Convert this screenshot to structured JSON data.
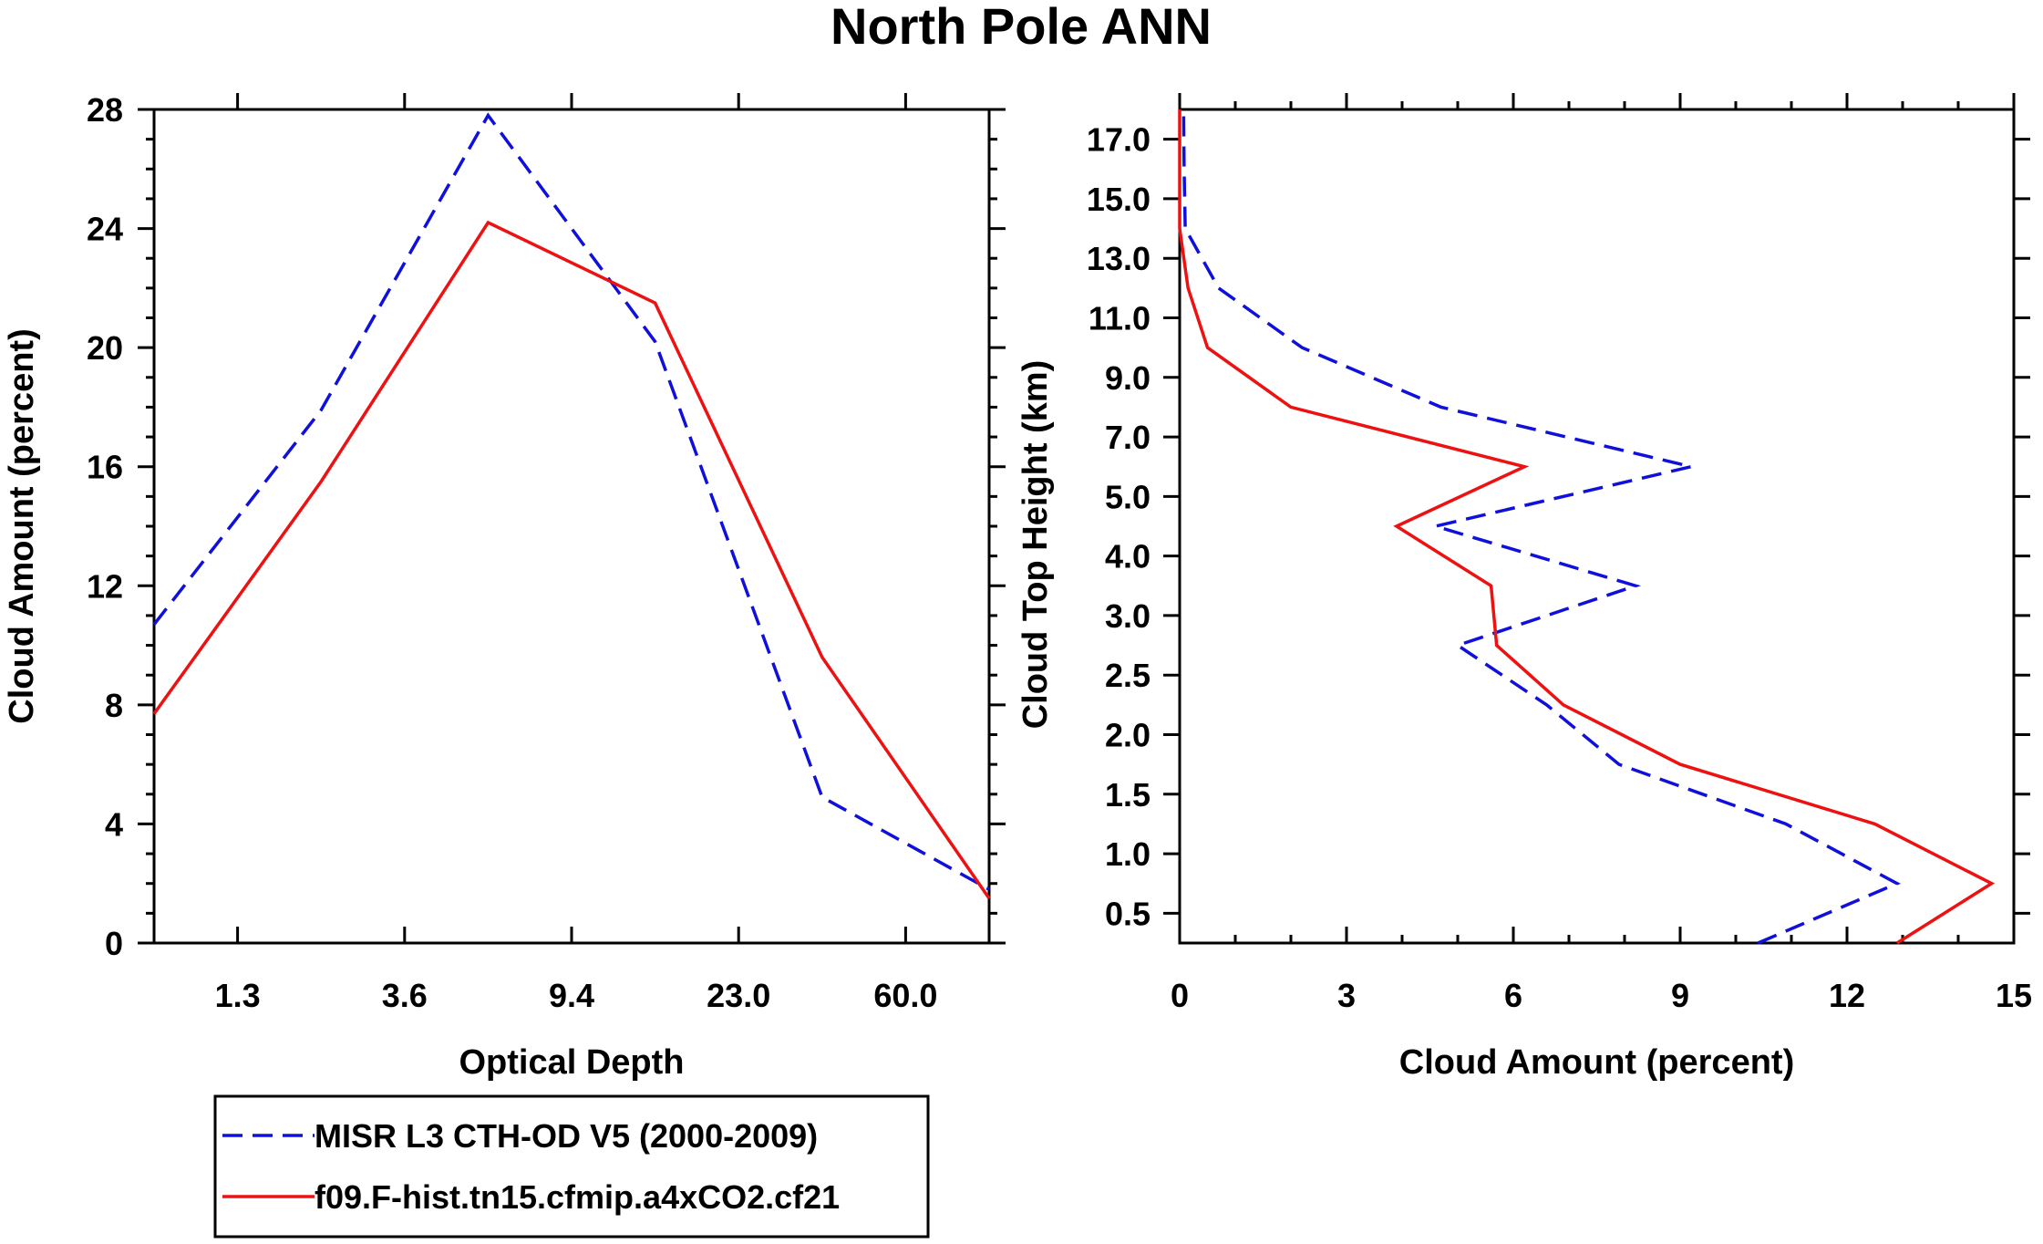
{
  "title": "North Pole ANN",
  "colors": {
    "observation": "#1010dd",
    "model": "#ee1111"
  },
  "legend": {
    "entries": [
      {
        "label": "MISR L3 CTH-OD V5 (2000-2009)",
        "style": "dashed",
        "color": "#1010dd"
      },
      {
        "label": "f09.F-hist.tn15.cfmip.a4xCO2.cf21",
        "style": "solid",
        "color": "#ee1111"
      }
    ]
  },
  "chart_data": [
    {
      "type": "line",
      "name": "optical-depth-panel",
      "xlabel": "Optical Depth",
      "ylabel": "Cloud Amount (percent)",
      "x_index_range": [
        0,
        5
      ],
      "x_tick_positions": [
        0.5,
        1.5,
        2.5,
        3.5,
        4.5
      ],
      "x_tick_labels": [
        "1.3",
        "3.6",
        "9.4",
        "23.0",
        "60.0"
      ],
      "ylim": [
        0,
        28
      ],
      "y_ticks": [
        0,
        4,
        8,
        12,
        16,
        20,
        24,
        28
      ],
      "x": [
        0,
        1,
        2,
        3,
        4,
        5
      ],
      "series": [
        {
          "name": "MISR L3 CTH-OD V5 (2000-2009)",
          "values": [
            10.7,
            17.9,
            27.8,
            20.2,
            4.9,
            1.8
          ]
        },
        {
          "name": "f09.F-hist.tn15.cfmip.a4xCO2.cf21",
          "values": [
            7.7,
            15.5,
            24.2,
            21.5,
            9.6,
            1.5
          ]
        }
      ]
    },
    {
      "type": "line",
      "name": "cloud-top-height-panel",
      "xlabel": "Cloud Amount (percent)",
      "ylabel": "Cloud Top Height (km)",
      "xlim": [
        0,
        15
      ],
      "x_ticks": [
        0,
        3,
        6,
        9,
        12,
        15
      ],
      "y_index_range": [
        0,
        14
      ],
      "y_tick_positions": [
        0.5,
        1.5,
        2.5,
        3.5,
        4.5,
        5.5,
        6.5,
        7.5,
        8.5,
        9.5,
        10.5,
        11.5,
        12.5,
        13.5
      ],
      "y_tick_labels": [
        "0.5",
        "1.0",
        "1.5",
        "2.0",
        "2.5",
        "3.0",
        "4.0",
        "5.0",
        "7.0",
        "9.0",
        "11.0",
        "13.0",
        "15.0",
        "17.0"
      ],
      "y": [
        0,
        1,
        2,
        3,
        4,
        5,
        6,
        7,
        8,
        9,
        10,
        11,
        12,
        13,
        14
      ],
      "series": [
        {
          "name": "MISR L3 CTH-OD V5 (2000-2009)",
          "values": [
            10.4,
            12.9,
            10.9,
            7.9,
            6.6,
            5.0,
            8.2,
            4.6,
            9.2,
            4.7,
            2.2,
            0.7,
            0.1,
            0.08,
            0.07
          ]
        },
        {
          "name": "f09.F-hist.tn15.cfmip.a4xCO2.cf21",
          "values": [
            12.9,
            14.6,
            12.5,
            9.0,
            6.9,
            5.7,
            5.6,
            3.9,
            6.2,
            2.0,
            0.5,
            0.15,
            0.0,
            0.0,
            0.0
          ]
        }
      ]
    }
  ]
}
